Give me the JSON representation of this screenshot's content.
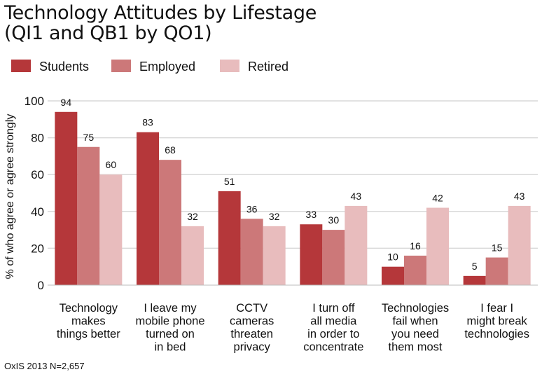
{
  "title_lines": [
    "Technology Attitudes by Lifestage",
    "(QI1 and QB1 by QO1)"
  ],
  "footer": "OxIS 2013 N=2,657",
  "colors": {
    "Students": "#b5373a",
    "Employed": "#cc7879",
    "Retired": "#e8bcbd",
    "grid": "#d9d9d9"
  },
  "chart_data": {
    "type": "bar",
    "title": "Technology Attitudes by Lifestage (QI1 and QB1 by QO1)",
    "ylabel": "% of who agree or agree strongly",
    "xlabel": "",
    "ylim": [
      0,
      100
    ],
    "yticks": [
      0,
      20,
      40,
      60,
      80,
      100
    ],
    "grid": true,
    "legend": "top-left",
    "categories": [
      [
        "Technology",
        "makes",
        "things better"
      ],
      [
        "I leave my",
        "mobile phone",
        "turned on",
        "in bed"
      ],
      [
        "CCTV",
        "cameras",
        "threaten",
        "privacy"
      ],
      [
        "I turn off",
        "all media",
        "in order to",
        "concentrate"
      ],
      [
        "Technologies",
        "fail when",
        "you need",
        "them most"
      ],
      [
        "I fear I",
        "might break",
        "technologies"
      ]
    ],
    "series": [
      {
        "name": "Students",
        "values": [
          94,
          83,
          51,
          33,
          10,
          5
        ]
      },
      {
        "name": "Employed",
        "values": [
          75,
          68,
          36,
          30,
          16,
          15
        ]
      },
      {
        "name": "Retired",
        "values": [
          60,
          32,
          32,
          43,
          42,
          43
        ]
      }
    ]
  }
}
